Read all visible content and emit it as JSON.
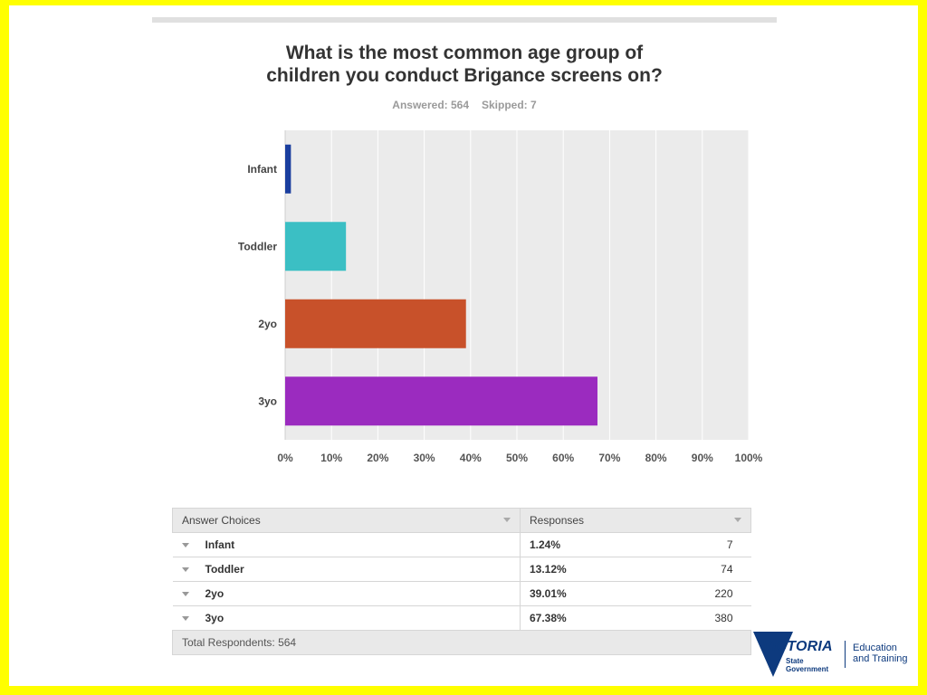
{
  "question": {
    "title_line1": "What is the most common age group of",
    "title_line2": "children you conduct Brigance screens on?",
    "answered": "Answered: 564",
    "skipped": "Skipped: 7"
  },
  "chart_data": {
    "type": "bar",
    "orientation": "horizontal",
    "categories": [
      "Infant",
      "Toddler",
      "2yo",
      "3yo"
    ],
    "values": [
      1.24,
      13.12,
      39.01,
      67.38
    ],
    "colors": [
      "#1a3e9e",
      "#3bbfc4",
      "#c8512a",
      "#9b2bbf"
    ],
    "xlim": [
      0,
      100
    ],
    "x_ticks": [
      "0%",
      "10%",
      "20%",
      "30%",
      "40%",
      "50%",
      "60%",
      "70%",
      "80%",
      "90%",
      "100%"
    ],
    "grid": true,
    "background": "#ebebeb"
  },
  "table": {
    "headers": [
      "Answer Choices",
      "Responses"
    ],
    "rows": [
      {
        "choice": "Infant",
        "percent": "1.24%",
        "count": "7"
      },
      {
        "choice": "Toddler",
        "percent": "13.12%",
        "count": "74"
      },
      {
        "choice": "2yo",
        "percent": "39.01%",
        "count": "220"
      },
      {
        "choice": "3yo",
        "percent": "67.38%",
        "count": "380"
      }
    ],
    "footer": "Total Respondents: 564"
  },
  "logo": {
    "wordmark": "VICTORIA",
    "sub_line1": "State",
    "sub_line2": "Government",
    "dept_line1": "Education",
    "dept_line2": "and Training"
  }
}
